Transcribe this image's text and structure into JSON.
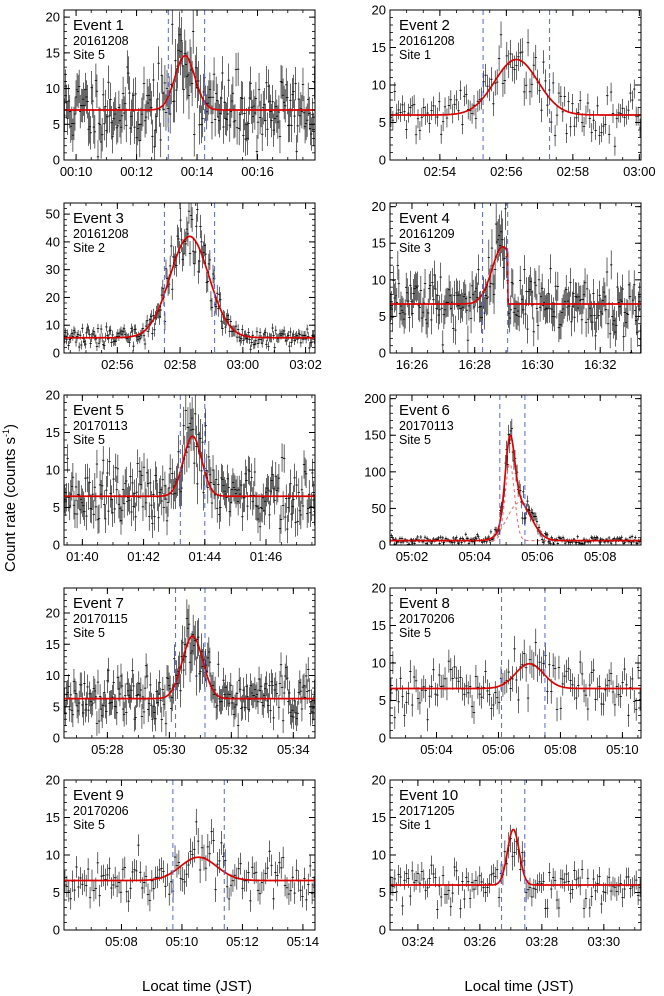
{
  "figure": {
    "ylabel": "Count rate (counts s",
    "ylabel_sup": "-1",
    "xlabel_left": "Locat time (JST)",
    "xlabel_right": "Local time (JST)"
  },
  "style": {
    "data_color": "#000000",
    "fit_color": "#dd0000",
    "window_color": "#5566ee",
    "component_color": "#ee6666"
  },
  "chart_data": [
    {
      "type": "scatter",
      "title": "Event 1",
      "date": "20161208",
      "site": "Site 5",
      "x_unit": "minutes after 00:00 JST",
      "xlim": [
        9.6,
        17.9
      ],
      "ylim": [
        0,
        21
      ],
      "yticks": [
        0,
        5,
        10,
        15,
        20
      ],
      "xticks": [
        {
          "v": 10,
          "label": "00:10"
        },
        {
          "v": 12,
          "label": "00:12"
        },
        {
          "v": 14,
          "label": "00:14"
        },
        {
          "v": 16,
          "label": "00:16"
        }
      ],
      "windows": [
        13.05,
        14.25
      ],
      "fit": {
        "baseline": 7,
        "amplitude": 7.6,
        "center": 13.6,
        "sigma": 0.33
      },
      "noise": 2.6,
      "n_points": 240,
      "seed": 11
    },
    {
      "type": "scatter",
      "title": "Event 2",
      "date": "20161208",
      "site": "Site 1",
      "x_unit": "minutes after 02:00 JST",
      "xlim": [
        52.5,
        60.05
      ],
      "ylim": [
        0,
        20
      ],
      "yticks": [
        0,
        5,
        10,
        15,
        20
      ],
      "xticks": [
        {
          "v": 54,
          "label": "02:54"
        },
        {
          "v": 56,
          "label": "02:56"
        },
        {
          "v": 58,
          "label": "02:58"
        },
        {
          "v": 60,
          "label": "03:00"
        }
      ],
      "windows": [
        55.3,
        57.3
      ],
      "fit": {
        "baseline": 6,
        "amplitude": 7.4,
        "center": 56.3,
        "sigma": 0.65
      },
      "noise": 1.4,
      "n_points": 130,
      "seed": 22
    },
    {
      "type": "scatter",
      "title": "Event 3",
      "date": "20161208",
      "site": "Site 2",
      "x_unit": "minutes after 02:00 JST",
      "xlim": [
        54.3,
        62.3
      ],
      "ylim": [
        0,
        54
      ],
      "yticks": [
        0,
        10,
        20,
        30,
        40,
        50
      ],
      "xticks": [
        {
          "v": 56,
          "label": "02:56"
        },
        {
          "v": 58,
          "label": "02:58"
        },
        {
          "v": 60,
          "label": "03:00"
        },
        {
          "v": 62,
          "label": "03:02"
        }
      ],
      "windows": [
        57.5,
        59.1
      ],
      "fit": {
        "baseline": 5.5,
        "amplitude": 36.5,
        "center": 58.3,
        "sigma": 0.62
      },
      "noise": 1.8,
      "n_points": 240,
      "seed": 33
    },
    {
      "type": "scatter",
      "title": "Event 4",
      "date": "20161209",
      "site": "Site 3",
      "x_unit": "minutes after 16:00 JST",
      "xlim": [
        25.3,
        33.3
      ],
      "ylim": [
        0,
        20.5
      ],
      "yticks": [
        0,
        5,
        10,
        15,
        20
      ],
      "xticks": [
        {
          "v": 26,
          "label": "16:26"
        },
        {
          "v": 28,
          "label": "16:28"
        },
        {
          "v": 30,
          "label": "16:30"
        },
        {
          "v": 32,
          "label": "16:32"
        }
      ],
      "windows": [
        28.25,
        29.05
      ],
      "fit": {
        "baseline": 6.7,
        "amplitude": 7.8,
        "center": 28.9,
        "sigma": 0.35,
        "cutoff": 29.05
      },
      "noise": 2.2,
      "n_points": 240,
      "seed": 44
    },
    {
      "type": "scatter",
      "title": "Event 5",
      "date": "20170113",
      "site": "Site 5",
      "x_unit": "minutes after 01:00 JST",
      "xlim": [
        39.4,
        47.6
      ],
      "ylim": [
        0,
        20
      ],
      "yticks": [
        0,
        5,
        10,
        15,
        20
      ],
      "xticks": [
        {
          "v": 40,
          "label": "01:40"
        },
        {
          "v": 42,
          "label": "01:42"
        },
        {
          "v": 44,
          "label": "01:44"
        },
        {
          "v": 46,
          "label": "01:46"
        }
      ],
      "windows": [
        43.2,
        44.0
      ],
      "fit": {
        "baseline": 6.5,
        "amplitude": 8.0,
        "center": 43.6,
        "sigma": 0.3
      },
      "noise": 2.1,
      "n_points": 240,
      "seed": 55
    },
    {
      "type": "scatter",
      "title": "Event 6",
      "date": "20170113",
      "site": "Site 5",
      "x_unit": "minutes after 05:00 JST",
      "xlim": [
        61.3,
        69.3
      ],
      "ylim": [
        0,
        205
      ],
      "yticks": [
        0,
        50,
        100,
        150,
        200
      ],
      "xticks": [
        {
          "v": 62,
          "label": "05:02"
        },
        {
          "v": 64,
          "label": "05:04"
        },
        {
          "v": 66,
          "label": "05:06"
        },
        {
          "v": 68,
          "label": "05:08"
        }
      ],
      "windows": [
        64.8,
        65.6
      ],
      "fit": {
        "baseline": 6,
        "amplitude": 0,
        "center": 65.2,
        "sigma": 0.2,
        "components": [
          {
            "amplitude": 105,
            "center": 65.12,
            "sigma": 0.15
          },
          {
            "amplitude": 52,
            "center": 65.42,
            "sigma": 0.38
          }
        ]
      },
      "noise": 3.0,
      "n_points": 240,
      "seed": 66
    },
    {
      "type": "scatter",
      "title": "Event 7",
      "date": "20170115",
      "site": "Site 5",
      "x_unit": "minutes after 05:00 JST",
      "xlim": [
        26.6,
        34.7
      ],
      "ylim": [
        0,
        24
      ],
      "yticks": [
        0,
        5,
        10,
        15,
        20
      ],
      "xticks": [
        {
          "v": 28,
          "label": "05:28"
        },
        {
          "v": 30,
          "label": "05:30"
        },
        {
          "v": 32,
          "label": "05:32"
        },
        {
          "v": 34,
          "label": "05:34"
        }
      ],
      "windows": [
        30.2,
        31.15
      ],
      "fit": {
        "baseline": 6.3,
        "amplitude": 10.0,
        "center": 30.75,
        "sigma": 0.33
      },
      "noise": 2.2,
      "n_points": 240,
      "seed": 77
    },
    {
      "type": "scatter",
      "title": "Event 8",
      "date": "20170206",
      "site": "Site 5",
      "x_unit": "minutes after 05:00 JST",
      "xlim": [
        62.5,
        70.6
      ],
      "ylim": [
        0,
        20
      ],
      "yticks": [
        0,
        5,
        10,
        15,
        20
      ],
      "xticks": [
        {
          "v": 64,
          "label": "05:04"
        },
        {
          "v": 66,
          "label": "05:06"
        },
        {
          "v": 68,
          "label": "05:08"
        },
        {
          "v": 70,
          "label": "05:10"
        }
      ],
      "windows": [
        66.1,
        67.5
      ],
      "fit": {
        "baseline": 6.6,
        "amplitude": 3.3,
        "center": 67.0,
        "sigma": 0.45
      },
      "noise": 1.7,
      "n_points": 130,
      "seed": 88
    },
    {
      "type": "scatter",
      "title": "Event 9",
      "date": "20170206",
      "site": "Site 5",
      "x_unit": "minutes after 05:00 JST",
      "xlim": [
        66.1,
        74.4
      ],
      "ylim": [
        0,
        20
      ],
      "yticks": [
        0,
        5,
        10,
        15,
        20
      ],
      "xticks": [
        {
          "v": 68,
          "label": "05:08"
        },
        {
          "v": 70,
          "label": "05:10"
        },
        {
          "v": 72,
          "label": "05:12"
        },
        {
          "v": 74,
          "label": "05:14"
        }
      ],
      "windows": [
        69.7,
        71.4
      ],
      "fit": {
        "baseline": 6.6,
        "amplitude": 3.1,
        "center": 70.55,
        "sigma": 0.6
      },
      "noise": 1.6,
      "n_points": 130,
      "seed": 99
    },
    {
      "type": "scatter",
      "title": "Event 10",
      "date": "20171205",
      "site": "Site 1",
      "x_unit": "minutes after 03:00 JST",
      "xlim": [
        23.1,
        31.2
      ],
      "ylim": [
        0,
        20
      ],
      "yticks": [
        0,
        5,
        10,
        15,
        20
      ],
      "xticks": [
        {
          "v": 24,
          "label": "03:24"
        },
        {
          "v": 26,
          "label": "03:26"
        },
        {
          "v": 28,
          "label": "03:28"
        },
        {
          "v": 30,
          "label": "03:30"
        }
      ],
      "windows": [
        26.7,
        27.45
      ],
      "fit": {
        "baseline": 6.0,
        "amplitude": 7.4,
        "center": 27.08,
        "sigma": 0.19
      },
      "noise": 1.4,
      "n_points": 130,
      "seed": 110
    }
  ]
}
